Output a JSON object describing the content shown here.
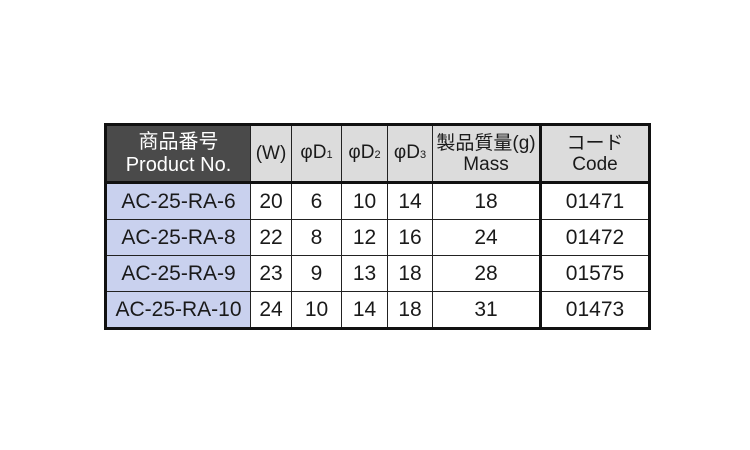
{
  "headers": {
    "product_jp": "商品番号",
    "product_en": "Product No.",
    "w": "(W)",
    "d1_prefix": "φD",
    "d1_sub": "1",
    "d2_prefix": "φD",
    "d2_sub": "2",
    "d3_prefix": "φD",
    "d3_sub": "3",
    "mass_jp": "製品質量(g)",
    "mass_en": "Mass",
    "code_jp": "コード",
    "code_en": "Code"
  },
  "rows": [
    {
      "product": "AC-25-RA-6",
      "w": "20",
      "d1": "6",
      "d2": "10",
      "d3": "14",
      "mass": "18",
      "code": "01471"
    },
    {
      "product": "AC-25-RA-8",
      "w": "22",
      "d1": "8",
      "d2": "12",
      "d3": "16",
      "mass": "24",
      "code": "01472"
    },
    {
      "product": "AC-25-RA-9",
      "w": "23",
      "d1": "9",
      "d2": "13",
      "d3": "18",
      "mass": "28",
      "code": "01575"
    },
    {
      "product": "AC-25-RA-10",
      "w": "24",
      "d1": "10",
      "d2": "14",
      "d3": "18",
      "mass": "31",
      "code": "01473"
    }
  ],
  "colors": {
    "header_dark": "#4a4a4a",
    "header_light": "#dcdcdc",
    "product_cell": "#c9d1ee"
  }
}
